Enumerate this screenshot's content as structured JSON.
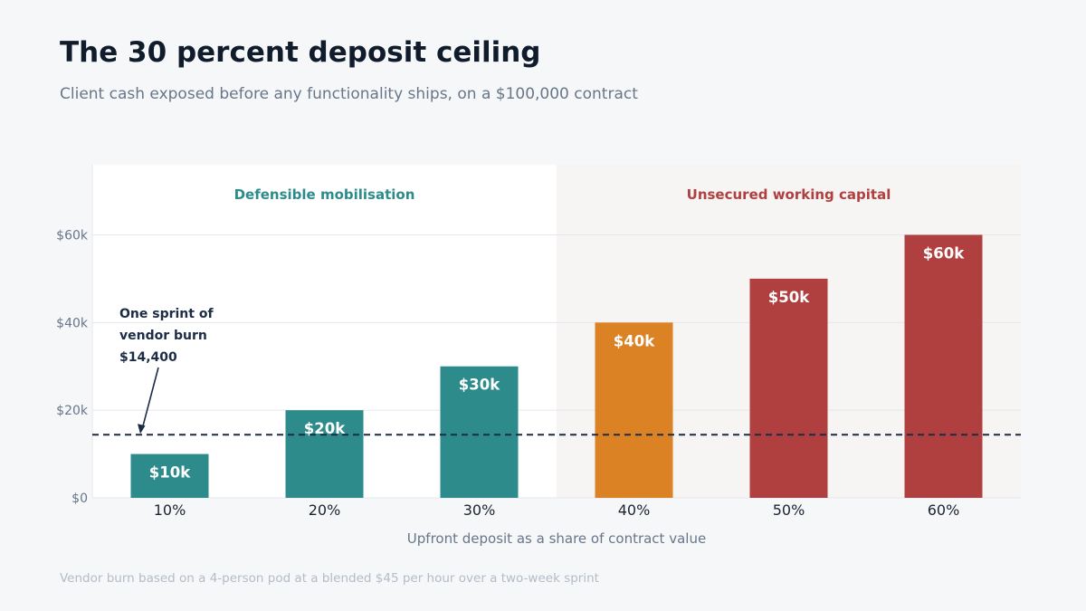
{
  "title": "The 30 percent deposit ceiling",
  "subtitle": "Client cash exposed before any functionality ships, on a $100,000 contract",
  "footnote": "Vendor burn based on a 4-person pod at a blended $45 per hour over a two-week sprint",
  "colors": {
    "teal": "#2d8b8b",
    "orange": "#db8225",
    "red": "#b04040",
    "reference": "#1c2c46",
    "safe_region_text": "#2d8b8b",
    "risk_region_text": "#b04040",
    "risk_region_bg": "#f7f4f4",
    "safe_region_bg": "#ffffff"
  },
  "chart_data": {
    "type": "bar",
    "categories": [
      "10%",
      "20%",
      "30%",
      "40%",
      "50%",
      "60%"
    ],
    "values": [
      10000,
      20000,
      30000,
      40000,
      50000,
      60000
    ],
    "value_labels": [
      "$10k",
      "$20k",
      "$30k",
      "$40k",
      "$50k",
      "$60k"
    ],
    "bar_colors": [
      "teal",
      "teal",
      "teal",
      "orange",
      "red",
      "red"
    ],
    "xlabel": "Upfront deposit as a share of contract value",
    "ylabel": "",
    "ylim": [
      0,
      76000
    ],
    "yticks": [
      0,
      20000,
      40000,
      60000
    ],
    "ytick_labels": [
      "$0",
      "$20k",
      "$40k",
      "$60k"
    ],
    "grid": true,
    "regions": [
      {
        "label": "Defensible mobilisation",
        "categories": [
          "10%",
          "20%",
          "30%"
        ],
        "color": "safe_region_text"
      },
      {
        "label": "Unsecured working capital",
        "categories": [
          "40%",
          "50%",
          "60%"
        ],
        "color": "risk_region_text"
      }
    ],
    "reference_line": {
      "value": 14400,
      "style": "dashed",
      "annotation_lines": [
        "One sprint of",
        "vendor burn",
        "$14,400"
      ]
    }
  }
}
